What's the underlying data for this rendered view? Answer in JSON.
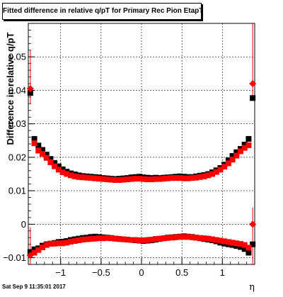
{
  "chart_data": {
    "type": "scatter",
    "title": "Fitted difference in relative q/pT for Primary Rec Pion EtapT",
    "xlabel": "η",
    "ylabel": "Difference in relative q/pT",
    "footer": "Sat Sep  9 11:35:01 2017",
    "xlim": [
      -1.4,
      1.4
    ],
    "ylim": [
      -0.012,
      0.06
    ],
    "x_ticks": [
      {
        "v": -1,
        "label": "−1"
      },
      {
        "v": -0.5,
        "label": "−0.5"
      },
      {
        "v": 0,
        "label": "0"
      },
      {
        "v": 0.5,
        "label": "0.5"
      },
      {
        "v": 1,
        "label": "1"
      }
    ],
    "y_ticks": [
      {
        "v": -0.01,
        "label": "−0.01"
      },
      {
        "v": 0,
        "label": "0"
      },
      {
        "v": 0.01,
        "label": "0.01"
      },
      {
        "v": 0.02,
        "label": "0.02"
      },
      {
        "v": 0.03,
        "label": "0.03"
      },
      {
        "v": 0.04,
        "label": "0.04"
      },
      {
        "v": 0.05,
        "label": "0.05"
      }
    ],
    "grid": true,
    "series": [
      {
        "color": "#000000",
        "marker": "square",
        "points": [
          [
            -1.375,
            0.0392
          ],
          [
            -1.325,
            0.0255
          ],
          [
            -1.275,
            0.0235
          ],
          [
            -1.225,
            0.0222
          ],
          [
            -1.175,
            0.0208
          ],
          [
            -1.125,
            0.0195
          ],
          [
            -1.075,
            0.0183
          ],
          [
            -1.025,
            0.0173
          ],
          [
            -0.975,
            0.0164
          ],
          [
            -0.925,
            0.0157
          ],
          [
            -0.875,
            0.0152
          ],
          [
            -0.825,
            0.0149
          ],
          [
            -0.775,
            0.0146
          ],
          [
            -0.725,
            0.0144
          ],
          [
            -0.675,
            0.0143
          ],
          [
            -0.625,
            0.0142
          ],
          [
            -0.575,
            0.0141
          ],
          [
            -0.525,
            0.014
          ],
          [
            -0.475,
            0.0138
          ],
          [
            -0.425,
            0.0137
          ],
          [
            -0.375,
            0.0136
          ],
          [
            -0.325,
            0.0135
          ],
          [
            -0.275,
            0.0136
          ],
          [
            -0.225,
            0.0137
          ],
          [
            -0.175,
            0.0138
          ],
          [
            -0.125,
            0.014
          ],
          [
            -0.075,
            0.0141
          ],
          [
            -0.025,
            0.0142
          ],
          [
            0.025,
            0.014
          ],
          [
            0.075,
            0.0139
          ],
          [
            0.125,
            0.0138
          ],
          [
            0.175,
            0.0139
          ],
          [
            0.225,
            0.0138
          ],
          [
            0.275,
            0.0139
          ],
          [
            0.325,
            0.014
          ],
          [
            0.375,
            0.0141
          ],
          [
            0.425,
            0.0142
          ],
          [
            0.475,
            0.0143
          ],
          [
            0.525,
            0.0142
          ],
          [
            0.575,
            0.0141
          ],
          [
            0.625,
            0.0141
          ],
          [
            0.675,
            0.0143
          ],
          [
            0.725,
            0.0145
          ],
          [
            0.775,
            0.0147
          ],
          [
            0.825,
            0.015
          ],
          [
            0.875,
            0.0155
          ],
          [
            0.925,
            0.0161
          ],
          [
            0.975,
            0.0168
          ],
          [
            1.025,
            0.0178
          ],
          [
            1.075,
            0.0191
          ],
          [
            1.125,
            0.0204
          ],
          [
            1.175,
            0.0215
          ],
          [
            1.225,
            0.0225
          ],
          [
            1.275,
            0.0238
          ],
          [
            1.325,
            0.0255
          ],
          [
            1.375,
            0.0377
          ],
          [
            -1.375,
            -0.0083
          ],
          [
            -1.325,
            -0.0075
          ],
          [
            -1.275,
            -0.0072
          ],
          [
            -1.225,
            -0.0064
          ],
          [
            -1.175,
            -0.006
          ],
          [
            -1.125,
            -0.0058
          ],
          [
            -1.075,
            -0.0056
          ],
          [
            -1.025,
            -0.0053
          ],
          [
            -0.975,
            -0.0052
          ],
          [
            -0.925,
            -0.005
          ],
          [
            -0.875,
            -0.0047
          ],
          [
            -0.825,
            -0.0045
          ],
          [
            -0.775,
            -0.0043
          ],
          [
            -0.725,
            -0.0041
          ],
          [
            -0.675,
            -0.004
          ],
          [
            -0.625,
            -0.0038
          ],
          [
            -0.575,
            -0.0037
          ],
          [
            -0.525,
            -0.0038
          ],
          [
            -0.475,
            -0.0039
          ],
          [
            -0.425,
            -0.004
          ],
          [
            -0.375,
            -0.0041
          ],
          [
            -0.325,
            -0.0043
          ],
          [
            -0.275,
            -0.0044
          ],
          [
            -0.225,
            -0.0045
          ],
          [
            -0.175,
            -0.0046
          ],
          [
            -0.125,
            -0.0047
          ],
          [
            -0.075,
            -0.0048
          ],
          [
            -0.025,
            -0.0049
          ],
          [
            0.025,
            -0.005
          ],
          [
            0.075,
            -0.0049
          ],
          [
            0.125,
            -0.0048
          ],
          [
            0.175,
            -0.0046
          ],
          [
            0.225,
            -0.0044
          ],
          [
            0.275,
            -0.0042
          ],
          [
            0.325,
            -0.004
          ],
          [
            0.375,
            -0.0039
          ],
          [
            0.425,
            -0.0038
          ],
          [
            0.475,
            -0.0037
          ],
          [
            0.525,
            -0.0036
          ],
          [
            0.575,
            -0.0037
          ],
          [
            0.625,
            -0.0038
          ],
          [
            0.675,
            -0.004
          ],
          [
            0.725,
            -0.0042
          ],
          [
            0.775,
            -0.0044
          ],
          [
            0.825,
            -0.0046
          ],
          [
            0.875,
            -0.0048
          ],
          [
            0.925,
            -0.0051
          ],
          [
            0.975,
            -0.0055
          ],
          [
            1.025,
            -0.0058
          ],
          [
            1.075,
            -0.006
          ],
          [
            1.125,
            -0.0062
          ],
          [
            1.175,
            -0.0065
          ],
          [
            1.225,
            -0.0068
          ],
          [
            1.275,
            -0.0074
          ],
          [
            1.325,
            -0.0085
          ],
          [
            1.375,
            -0.006
          ]
        ]
      },
      {
        "color": "#ff0000",
        "marker": "square",
        "points": [
          [
            -1.375,
            0.0405
          ],
          [
            -1.325,
            0.0242
          ],
          [
            -1.275,
            0.022
          ],
          [
            -1.225,
            0.021
          ],
          [
            -1.175,
            0.0198
          ],
          [
            -1.125,
            0.0185
          ],
          [
            -1.075,
            0.0173
          ],
          [
            -1.025,
            0.0163
          ],
          [
            -0.975,
            0.0155
          ],
          [
            -0.925,
            0.015
          ],
          [
            -0.875,
            0.0146
          ],
          [
            -0.825,
            0.0143
          ],
          [
            -0.775,
            0.0141
          ],
          [
            -0.725,
            0.014
          ],
          [
            -0.675,
            0.0139
          ],
          [
            -0.625,
            0.0138
          ],
          [
            -0.575,
            0.0137
          ],
          [
            -0.525,
            0.0136
          ],
          [
            -0.475,
            0.0135
          ],
          [
            -0.425,
            0.0134
          ],
          [
            -0.375,
            0.0133
          ],
          [
            -0.325,
            0.0132
          ],
          [
            -0.275,
            0.0132
          ],
          [
            -0.225,
            0.0133
          ],
          [
            -0.175,
            0.0134
          ],
          [
            -0.125,
            0.0135
          ],
          [
            -0.075,
            0.0136
          ],
          [
            -0.025,
            0.0136
          ],
          [
            0.025,
            0.0135
          ],
          [
            0.075,
            0.0134
          ],
          [
            0.125,
            0.0134
          ],
          [
            0.175,
            0.0135
          ],
          [
            0.225,
            0.0135
          ],
          [
            0.275,
            0.0136
          ],
          [
            0.325,
            0.0137
          ],
          [
            0.375,
            0.0138
          ],
          [
            0.425,
            0.0138
          ],
          [
            0.475,
            0.0138
          ],
          [
            0.525,
            0.0137
          ],
          [
            0.575,
            0.0137
          ],
          [
            0.625,
            0.0138
          ],
          [
            0.675,
            0.0139
          ],
          [
            0.725,
            0.0141
          ],
          [
            0.775,
            0.0143
          ],
          [
            0.825,
            0.0146
          ],
          [
            0.875,
            0.015
          ],
          [
            0.925,
            0.0156
          ],
          [
            0.975,
            0.0163
          ],
          [
            1.025,
            0.0172
          ],
          [
            1.075,
            0.0182
          ],
          [
            1.125,
            0.0193
          ],
          [
            1.175,
            0.0205
          ],
          [
            1.225,
            0.0218
          ],
          [
            1.275,
            0.0228
          ],
          [
            1.325,
            0.0236
          ],
          [
            1.375,
            0.042
          ],
          [
            -1.375,
            -0.0093
          ],
          [
            -1.325,
            -0.0085
          ],
          [
            -1.275,
            -0.0077
          ],
          [
            -1.225,
            -0.0069
          ],
          [
            -1.175,
            -0.0062
          ],
          [
            -1.125,
            -0.0058
          ],
          [
            -1.075,
            -0.0058
          ],
          [
            -1.025,
            -0.0057
          ],
          [
            -0.975,
            -0.0057
          ],
          [
            -0.925,
            -0.0055
          ],
          [
            -0.875,
            -0.0052
          ],
          [
            -0.825,
            -0.005
          ],
          [
            -0.775,
            -0.0048
          ],
          [
            -0.725,
            -0.0046
          ],
          [
            -0.675,
            -0.0045
          ],
          [
            -0.625,
            -0.0044
          ],
          [
            -0.575,
            -0.0043
          ],
          [
            -0.525,
            -0.0042
          ],
          [
            -0.475,
            -0.0042
          ],
          [
            -0.425,
            -0.0041
          ],
          [
            -0.375,
            -0.0042
          ],
          [
            -0.325,
            -0.0043
          ],
          [
            -0.275,
            -0.0044
          ],
          [
            -0.225,
            -0.0045
          ],
          [
            -0.175,
            -0.0046
          ],
          [
            -0.125,
            -0.0047
          ],
          [
            -0.075,
            -0.0047
          ],
          [
            -0.025,
            -0.0048
          ],
          [
            0.025,
            -0.0048
          ],
          [
            0.075,
            -0.0047
          ],
          [
            0.125,
            -0.0046
          ],
          [
            0.175,
            -0.0044
          ],
          [
            0.225,
            -0.0043
          ],
          [
            0.275,
            -0.0042
          ],
          [
            0.325,
            -0.0041
          ],
          [
            0.375,
            -0.004
          ],
          [
            0.425,
            -0.0039
          ],
          [
            0.475,
            -0.0038
          ],
          [
            0.525,
            -0.0038
          ],
          [
            0.575,
            -0.0038
          ],
          [
            0.625,
            -0.0039
          ],
          [
            0.675,
            -0.004
          ],
          [
            0.725,
            -0.0041
          ],
          [
            0.775,
            -0.0042
          ],
          [
            0.825,
            -0.0043
          ],
          [
            0.875,
            -0.0045
          ],
          [
            0.925,
            -0.0047
          ],
          [
            0.975,
            -0.0049
          ],
          [
            1.025,
            -0.0051
          ],
          [
            1.075,
            -0.0053
          ],
          [
            1.125,
            -0.0055
          ],
          [
            1.175,
            -0.0057
          ],
          [
            1.225,
            -0.0059
          ],
          [
            1.275,
            -0.0062
          ],
          [
            1.325,
            -0.007
          ],
          [
            1.375,
            0.0
          ]
        ]
      }
    ],
    "error_bars": [
      {
        "x": -1.375,
        "y": 0.0405,
        "ylow": 0.036,
        "yhigh": 0.052,
        "color": "#ff0000"
      },
      {
        "x": 1.375,
        "y": 0.042,
        "ylow": 0.037,
        "yhigh": 0.06,
        "color": "#ff0000"
      },
      {
        "x": -1.375,
        "y": -0.0093,
        "ylow": -0.012,
        "yhigh": -0.001,
        "color": "#ff0000"
      },
      {
        "x": 1.375,
        "y": 0.0,
        "ylow": -0.012,
        "yhigh": 0.005,
        "color": "#ff0000"
      }
    ]
  }
}
